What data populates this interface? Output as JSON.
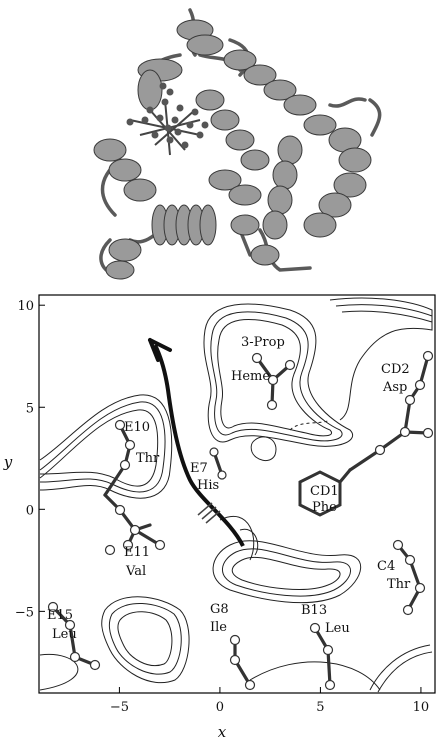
{
  "protein_panel": {
    "description_icon": "protein-ribbon-structure-icon"
  },
  "contour_plot": {
    "x_axis": {
      "title": "x",
      "range": [
        -9,
        10.7
      ],
      "ticks": [
        {
          "value": -5,
          "label": "−5"
        },
        {
          "value": 0,
          "label": "0"
        },
        {
          "value": 5,
          "label": "5"
        },
        {
          "value": 10,
          "label": "10"
        }
      ]
    },
    "y_axis": {
      "title": "y",
      "range": [
        -9,
        10.5
      ],
      "ticks": [
        {
          "value": 10,
          "label": "10"
        },
        {
          "value": 5,
          "label": "5"
        },
        {
          "value": 0,
          "label": "0"
        },
        {
          "value": -5,
          "label": "−5"
        }
      ]
    },
    "residues": [
      {
        "id": "prop",
        "name": "3-Prop"
      },
      {
        "id": "heme",
        "name": "Heme"
      },
      {
        "id": "cd2",
        "name": "CD2",
        "sub": "Asp"
      },
      {
        "id": "e10",
        "name": "E10",
        "sub": "Thr"
      },
      {
        "id": "e7",
        "name": "E7",
        "sub": "His"
      },
      {
        "id": "cd1",
        "name": "CD1",
        "sub": "Phe"
      },
      {
        "id": "e11",
        "name": "E11",
        "sub": "Val"
      },
      {
        "id": "c4",
        "name": "C4",
        "sub": "Thr"
      },
      {
        "id": "e15",
        "name": "E15",
        "sub": "Leu"
      },
      {
        "id": "g8",
        "name": "G8",
        "sub": "Ile"
      },
      {
        "id": "b13",
        "name": "B13",
        "sub": "Leu"
      }
    ]
  }
}
